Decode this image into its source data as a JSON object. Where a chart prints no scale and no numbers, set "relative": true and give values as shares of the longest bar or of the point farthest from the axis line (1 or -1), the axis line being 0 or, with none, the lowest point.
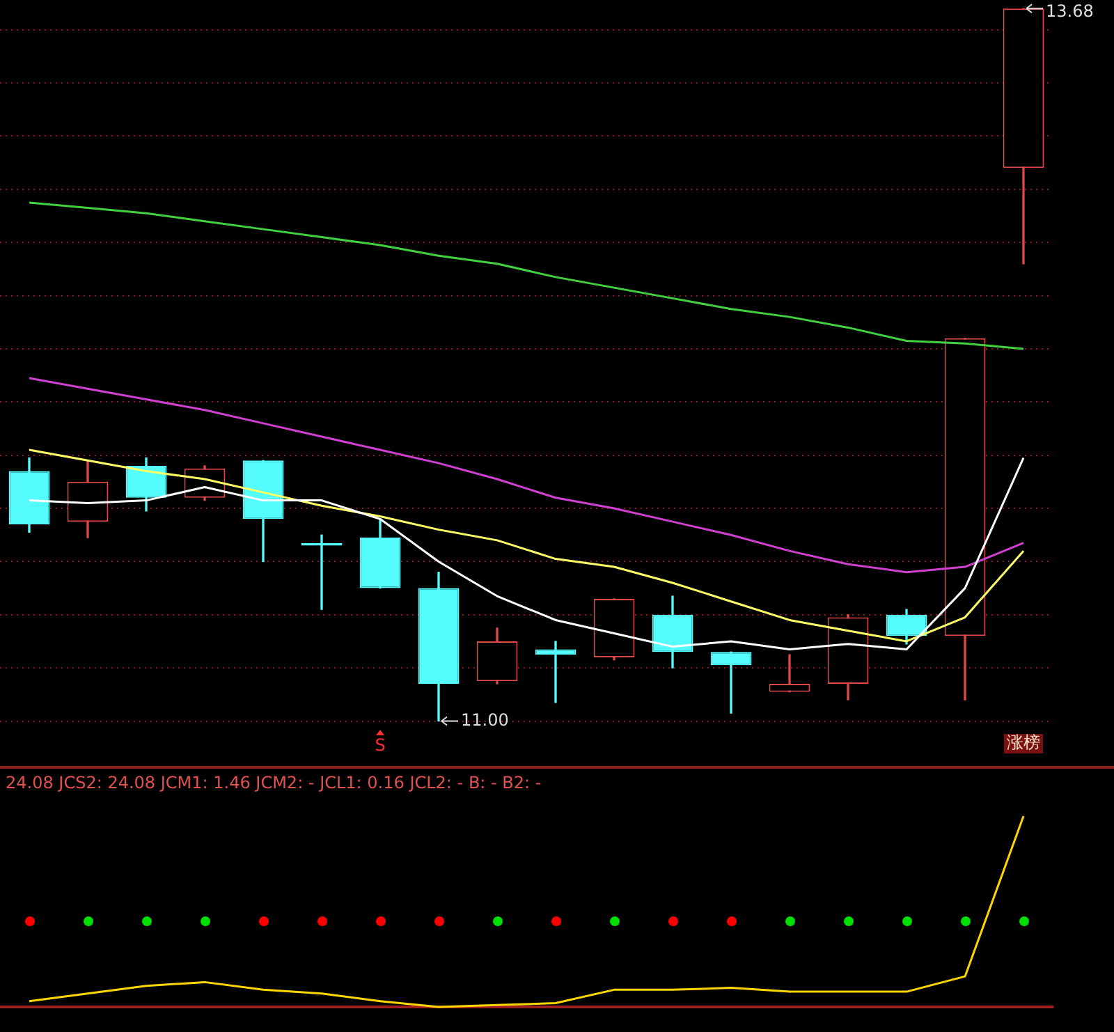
{
  "chart_data": [
    {
      "type": "candlestick",
      "categories": [
        null,
        null,
        null,
        null,
        null,
        null,
        null,
        null,
        null,
        null,
        null,
        null,
        null,
        null,
        null,
        null,
        null,
        null
      ],
      "ohlc": [
        [
          11.94,
          11.99,
          11.71,
          11.74
        ],
        [
          11.75,
          11.98,
          11.69,
          11.9
        ],
        [
          11.96,
          11.99,
          11.79,
          11.84
        ],
        [
          11.84,
          11.96,
          11.83,
          11.95
        ],
        [
          11.98,
          11.98,
          11.6,
          11.76
        ],
        [
          11.67,
          11.7,
          11.42,
          11.66
        ],
        [
          11.69,
          11.76,
          11.5,
          11.5
        ],
        [
          11.5,
          11.56,
          11.0,
          11.14
        ],
        [
          11.15,
          11.35,
          11.14,
          11.3
        ],
        [
          11.27,
          11.3,
          11.07,
          11.25
        ],
        [
          11.24,
          11.46,
          11.23,
          11.46
        ],
        [
          11.4,
          11.47,
          11.2,
          11.26
        ],
        [
          11.26,
          11.26,
          11.03,
          11.21
        ],
        [
          11.11,
          11.25,
          11.11,
          11.14
        ],
        [
          11.14,
          11.4,
          11.08,
          11.39
        ],
        [
          11.4,
          11.42,
          11.29,
          11.32
        ],
        [
          11.32,
          12.44,
          11.08,
          12.44
        ],
        [
          13.08,
          13.68,
          12.72,
          13.68
        ]
      ],
      "colors": [
        "#54fcfc",
        "#e04848",
        "#54fcfc",
        "#e04848",
        "#54fcfc",
        "#54fcfc",
        "#54fcfc",
        "#54fcfc",
        "#e04848",
        "#54fcfc",
        "#e04848",
        "#54fcfc",
        "#54fcfc",
        "#e04848",
        "#e04848",
        "#54fcfc",
        "#e04848",
        "#e04848"
      ],
      "series": [
        {
          "type": "line",
          "color": "#ffffff",
          "values": [
            11.83,
            11.82,
            11.83,
            11.88,
            11.83,
            11.83,
            11.76,
            11.6,
            11.47,
            11.38,
            11.33,
            11.28,
            11.3,
            11.27,
            11.29,
            11.27,
            11.5,
            11.99
          ]
        },
        {
          "type": "line",
          "color": "#ffff66",
          "values": [
            12.02,
            11.98,
            11.94,
            11.91,
            11.86,
            11.81,
            11.77,
            11.72,
            11.68,
            11.61,
            11.58,
            11.52,
            11.45,
            11.38,
            11.34,
            11.3,
            11.39,
            11.64
          ]
        },
        {
          "type": "line",
          "color": "#d040d0",
          "values": [
            12.29,
            12.25,
            12.21,
            12.17,
            12.12,
            12.07,
            12.02,
            11.97,
            11.91,
            11.84,
            11.8,
            11.75,
            11.7,
            11.64,
            11.59,
            11.56,
            11.58,
            11.67
          ]
        },
        {
          "type": "line",
          "color": "#40d040",
          "values": [
            12.95,
            12.93,
            12.91,
            12.88,
            12.85,
            12.82,
            12.79,
            12.75,
            12.72,
            12.67,
            12.63,
            12.59,
            12.55,
            12.52,
            12.48,
            12.43,
            12.42,
            12.4
          ]
        }
      ],
      "yticks": [
        {
          "value": 11.0,
          "label": null
        },
        {
          "value": 11.2,
          "label": null
        },
        {
          "value": 11.4,
          "label": null
        },
        {
          "value": 11.6,
          "label": null
        },
        {
          "value": 11.8,
          "label": null
        },
        {
          "value": 12.0,
          "label": null
        },
        {
          "value": 12.2,
          "label": null
        },
        {
          "value": 12.4,
          "label": null
        },
        {
          "value": 12.6,
          "label": null
        },
        {
          "value": 12.8,
          "label": null
        },
        {
          "value": 13.0,
          "label": null
        },
        {
          "value": 13.2,
          "label": null
        },
        {
          "value": 13.4,
          "label": null
        },
        {
          "value": 13.6,
          "label": null
        }
      ],
      "grid": "y",
      "legend": false,
      "annotations": [
        "13.68",
        "11.00",
        "S",
        "涨榜"
      ]
    },
    {
      "type": "line",
      "relative": true,
      "title": "24.08 JCS2: 24.08 JCM1: 1.46 JCM2: - JCL1: 0.16 JCL2: - B: - B2: -",
      "categories": [
        null,
        null,
        null,
        null,
        null,
        null,
        null,
        null,
        null,
        null,
        null,
        null,
        null,
        null,
        null,
        null,
        null,
        null
      ],
      "series": [
        {
          "type": "line",
          "color": "#ffd700",
          "values": [
            0.03,
            0.07,
            0.11,
            0.13,
            0.09,
            0.07,
            0.03,
            0,
            0.01,
            0.02,
            0.09,
            0.09,
            0.1,
            0.08,
            0.08,
            0.08,
            0.16,
            1
          ]
        }
      ],
      "legend": false
    }
  ]
}
